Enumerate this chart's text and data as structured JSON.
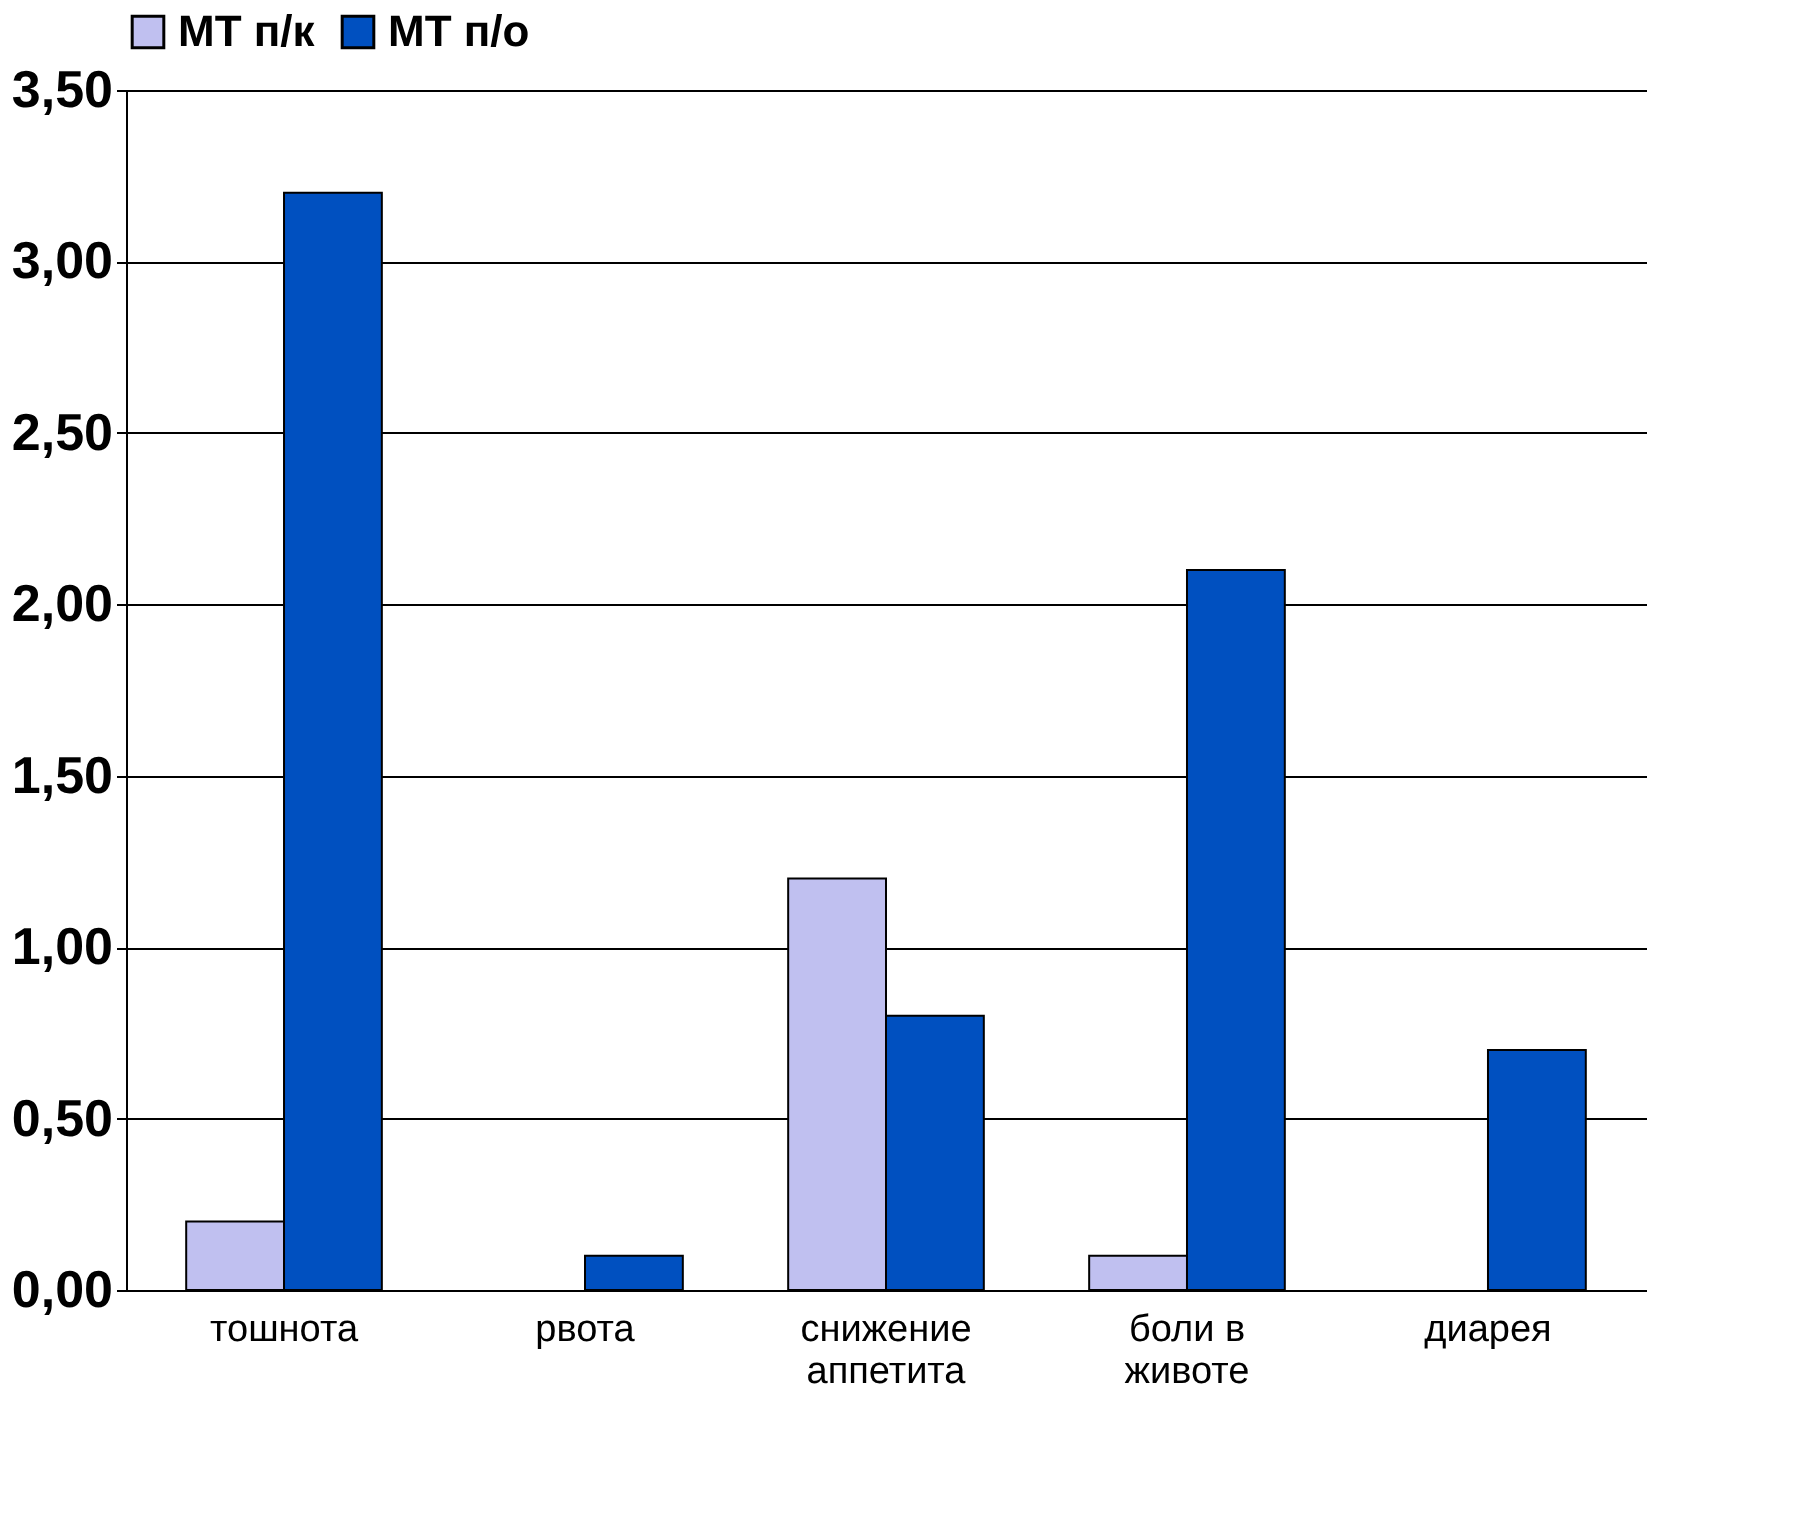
{
  "chart_data": {
    "type": "bar",
    "categories": [
      "тошнота",
      "рвота",
      "снижение аппетита",
      "боли в животе",
      "диарея"
    ],
    "series": [
      {
        "name": "МТ п/к",
        "color": "#c0c0f0",
        "values": [
          0.2,
          null,
          1.2,
          0.1,
          null
        ]
      },
      {
        "name": "МТ п/о",
        "color": "#0050c0",
        "values": [
          3.2,
          0.1,
          0.8,
          2.1,
          0.7
        ]
      }
    ],
    "ylim": [
      0,
      3.5
    ],
    "yticks": [
      {
        "value": 0,
        "label": "0,00"
      },
      {
        "value": 0.5,
        "label": "0,50"
      },
      {
        "value": 1,
        "label": "1,00"
      },
      {
        "value": 1.5,
        "label": "1,50"
      },
      {
        "value": 2,
        "label": "2,00"
      },
      {
        "value": 2.5,
        "label": "2,50"
      },
      {
        "value": 3,
        "label": "3,00"
      },
      {
        "value": 3.5,
        "label": "3,50"
      }
    ],
    "grid": "y",
    "legend": "top"
  }
}
